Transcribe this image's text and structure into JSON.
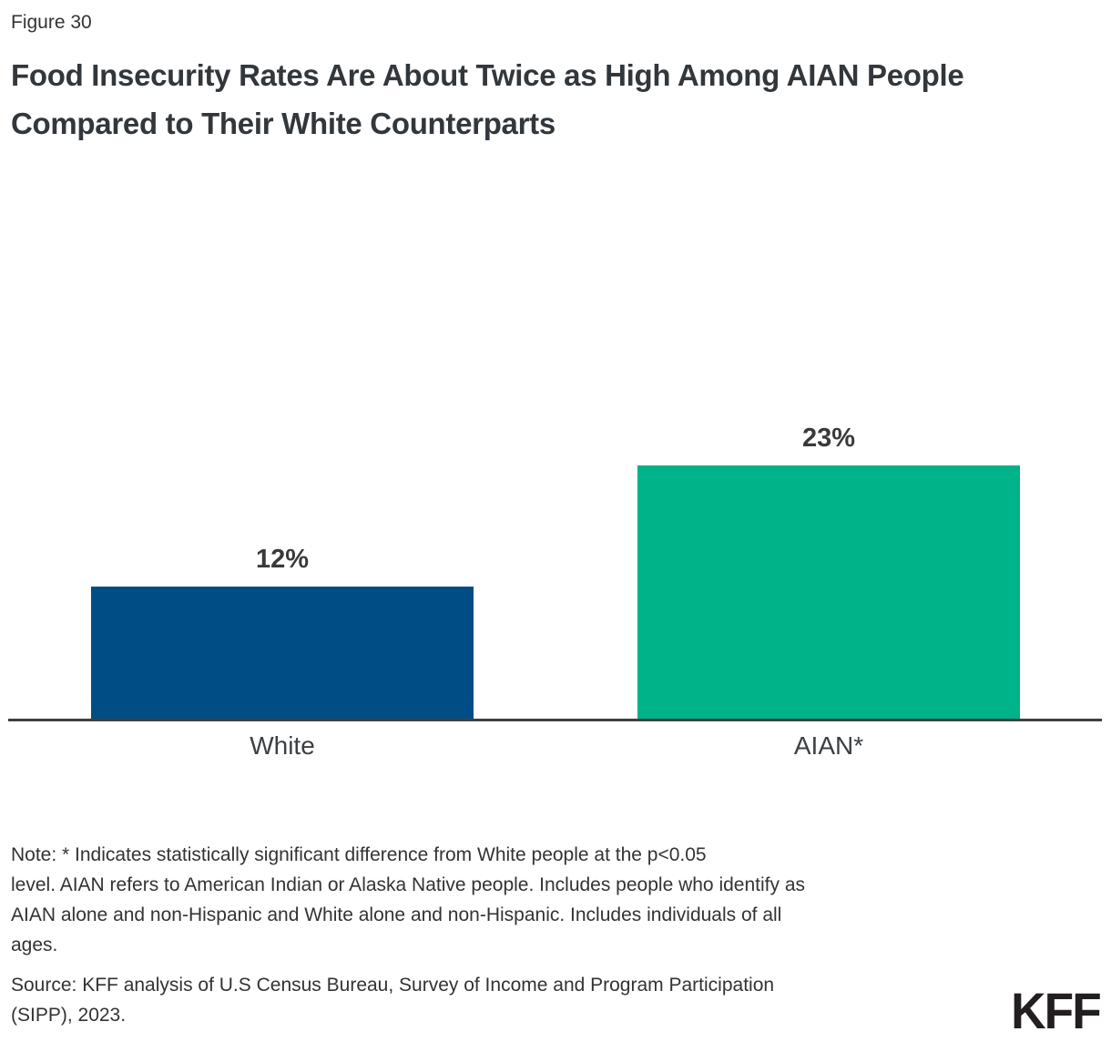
{
  "figure_label": "Figure 30",
  "title": "Food Insecurity Rates Are About Twice as High Among AIAN People Compared to Their White Counterparts",
  "chart_data": {
    "type": "bar",
    "title": "Food Insecurity Rates Are About Twice as High Among AIAN People Compared to Their White Counterparts",
    "categories": [
      "White",
      "AIAN*"
    ],
    "values": [
      12,
      23
    ],
    "value_labels": [
      "12%",
      "23%"
    ],
    "bar_colors": [
      "#004d86",
      "#00b388"
    ],
    "xlabel": "",
    "ylabel": "",
    "ylim": [
      0,
      25
    ],
    "grid": false,
    "legend": false,
    "annotations": "Data labels shown above each bar; asterisk on AIAN denotes statistically significant difference from White"
  },
  "note_lines": [
    "Note: * Indicates statistically significant difference from White people at the p<0.05",
    "level. AIAN refers to American Indian or Alaska Native people. Includes people who identify as",
    "AIAN alone and non-Hispanic and White alone and non-Hispanic. Includes individuals of all",
    "ages."
  ],
  "source_lines": [
    "Source: KFF analysis of U.S Census Bureau, Survey of Income and Program Participation",
    "(SIPP), 2023."
  ],
  "logo_text": "KFF",
  "colors": {
    "bar_white": "#004d86",
    "bar_aian": "#00b388",
    "axis": "#404040",
    "text": "#333333"
  }
}
